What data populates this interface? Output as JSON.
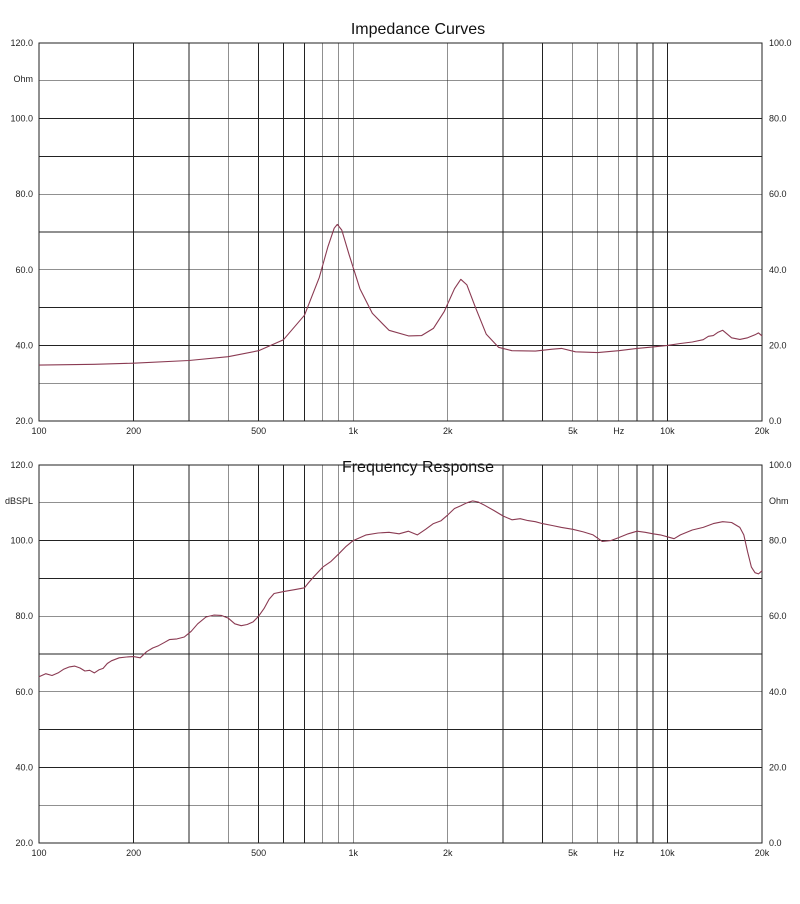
{
  "chart_data": [
    {
      "type": "line",
      "title": "Impedance Curves",
      "x_scale": "log",
      "xlim": [
        100,
        20000
      ],
      "x_ticks": [
        {
          "value": 100,
          "label": "100"
        },
        {
          "value": 200,
          "label": "200"
        },
        {
          "value": 500,
          "label": "500"
        },
        {
          "value": 1000,
          "label": "1k"
        },
        {
          "value": 2000,
          "label": "2k"
        },
        {
          "value": 5000,
          "label": "5k"
        },
        {
          "value": 7000,
          "label": "Hz"
        },
        {
          "value": 10000,
          "label": "10k"
        },
        {
          "value": 20000,
          "label": "20k"
        }
      ],
      "left_axis": {
        "ylim": [
          20,
          120
        ],
        "unit": "Ohm",
        "tick_labels": [
          {
            "value": 120,
            "label": "120.0"
          },
          {
            "value": 100,
            "label": "100.0"
          },
          {
            "value": 80,
            "label": "80.0"
          },
          {
            "value": 60,
            "label": "60.0"
          },
          {
            "value": 40,
            "label": "40.0"
          },
          {
            "value": 20,
            "label": "20.0"
          }
        ]
      },
      "right_axis": {
        "ylim": [
          0,
          100
        ],
        "tick_labels": [
          {
            "value": 100,
            "label": "100.0"
          },
          {
            "value": 80,
            "label": "80.0"
          },
          {
            "value": 60,
            "label": "60.0"
          },
          {
            "value": 40,
            "label": "40.0"
          },
          {
            "value": 20,
            "label": "20.0"
          },
          {
            "value": 0,
            "label": "0.0"
          }
        ]
      },
      "grid": true,
      "series": [
        {
          "color": "#8a3a52",
          "points": [
            [
              100,
              34.8
            ],
            [
              150,
              35.0
            ],
            [
              200,
              35.3
            ],
            [
              300,
              36.0
            ],
            [
              400,
              37.0
            ],
            [
              500,
              38.6
            ],
            [
              600,
              41.5
            ],
            [
              700,
              48.0
            ],
            [
              780,
              58.0
            ],
            [
              830,
              66.0
            ],
            [
              870,
              71.0
            ],
            [
              890,
              72.0
            ],
            [
              920,
              70.5
            ],
            [
              970,
              64.0
            ],
            [
              1050,
              55.0
            ],
            [
              1150,
              48.5
            ],
            [
              1300,
              44.0
            ],
            [
              1500,
              42.5
            ],
            [
              1650,
              42.6
            ],
            [
              1800,
              44.5
            ],
            [
              1950,
              49.0
            ],
            [
              2100,
              55.0
            ],
            [
              2200,
              57.5
            ],
            [
              2300,
              56.0
            ],
            [
              2450,
              50.0
            ],
            [
              2650,
              43.0
            ],
            [
              2900,
              39.5
            ],
            [
              3200,
              38.6
            ],
            [
              3800,
              38.5
            ],
            [
              4300,
              39.0
            ],
            [
              4600,
              39.2
            ],
            [
              5100,
              38.3
            ],
            [
              6000,
              38.1
            ],
            [
              7000,
              38.6
            ],
            [
              8000,
              39.2
            ],
            [
              9000,
              39.6
            ],
            [
              10000,
              40.0
            ],
            [
              11000,
              40.5
            ],
            [
              12000,
              40.9
            ],
            [
              13000,
              41.5
            ],
            [
              13500,
              42.4
            ],
            [
              14000,
              42.6
            ],
            [
              14500,
              43.5
            ],
            [
              15000,
              44.0
            ],
            [
              15500,
              43.0
            ],
            [
              16000,
              42.0
            ],
            [
              17000,
              41.6
            ],
            [
              18000,
              42.0
            ],
            [
              19000,
              42.8
            ],
            [
              19500,
              43.3
            ],
            [
              20000,
              42.5
            ]
          ]
        }
      ]
    },
    {
      "type": "line",
      "title": "Frequency Response",
      "x_scale": "log",
      "xlim": [
        100,
        20000
      ],
      "x_ticks": [
        {
          "value": 100,
          "label": "100"
        },
        {
          "value": 200,
          "label": "200"
        },
        {
          "value": 500,
          "label": "500"
        },
        {
          "value": 1000,
          "label": "1k"
        },
        {
          "value": 2000,
          "label": "2k"
        },
        {
          "value": 5000,
          "label": "5k"
        },
        {
          "value": 7000,
          "label": "Hz"
        },
        {
          "value": 10000,
          "label": "10k"
        },
        {
          "value": 20000,
          "label": "20k"
        }
      ],
      "left_axis": {
        "ylim": [
          20,
          120
        ],
        "unit": "dBSPL",
        "tick_labels": [
          {
            "value": 120,
            "label": "120.0"
          },
          {
            "value": 100,
            "label": "100.0"
          },
          {
            "value": 80,
            "label": "80.0"
          },
          {
            "value": 60,
            "label": "60.0"
          },
          {
            "value": 40,
            "label": "40.0"
          },
          {
            "value": 20,
            "label": "20.0"
          }
        ]
      },
      "right_axis": {
        "ylim": [
          0,
          100
        ],
        "unit": "Ohm",
        "tick_labels": [
          {
            "value": 100,
            "label": "100.0"
          },
          {
            "value": 80,
            "label": "80.0"
          },
          {
            "value": 60,
            "label": "60.0"
          },
          {
            "value": 40,
            "label": "40.0"
          },
          {
            "value": 20,
            "label": "20.0"
          },
          {
            "value": 0,
            "label": "0.0"
          }
        ]
      },
      "grid": true,
      "series": [
        {
          "color": "#8a3a52",
          "points": [
            [
              100,
              64.0
            ],
            [
              105,
              64.8
            ],
            [
              110,
              64.3
            ],
            [
              115,
              65.0
            ],
            [
              120,
              66.0
            ],
            [
              125,
              66.6
            ],
            [
              130,
              66.8
            ],
            [
              135,
              66.3
            ],
            [
              140,
              65.5
            ],
            [
              145,
              65.7
            ],
            [
              150,
              65.0
            ],
            [
              155,
              65.8
            ],
            [
              160,
              66.2
            ],
            [
              165,
              67.5
            ],
            [
              170,
              68.2
            ],
            [
              180,
              69.0
            ],
            [
              190,
              69.2
            ],
            [
              200,
              69.3
            ],
            [
              210,
              69.0
            ],
            [
              220,
              70.6
            ],
            [
              230,
              71.6
            ],
            [
              240,
              72.2
            ],
            [
              250,
              73.0
            ],
            [
              260,
              73.8
            ],
            [
              275,
              74.0
            ],
            [
              290,
              74.5
            ],
            [
              305,
              76.0
            ],
            [
              320,
              78.0
            ],
            [
              340,
              79.8
            ],
            [
              360,
              80.3
            ],
            [
              380,
              80.2
            ],
            [
              400,
              79.5
            ],
            [
              420,
              78.0
            ],
            [
              440,
              77.5
            ],
            [
              460,
              77.8
            ],
            [
              480,
              78.5
            ],
            [
              500,
              80.0
            ],
            [
              520,
              82.0
            ],
            [
              540,
              84.5
            ],
            [
              560,
              86.0
            ],
            [
              600,
              86.5
            ],
            [
              650,
              87.0
            ],
            [
              700,
              87.5
            ],
            [
              720,
              88.8
            ],
            [
              750,
              90.5
            ],
            [
              800,
              93.0
            ],
            [
              850,
              94.5
            ],
            [
              900,
              96.5
            ],
            [
              950,
              98.5
            ],
            [
              1000,
              100.0
            ],
            [
              1100,
              101.5
            ],
            [
              1200,
              102.0
            ],
            [
              1300,
              102.2
            ],
            [
              1400,
              101.8
            ],
            [
              1500,
              102.5
            ],
            [
              1600,
              101.5
            ],
            [
              1700,
              103.0
            ],
            [
              1800,
              104.5
            ],
            [
              1900,
              105.2
            ],
            [
              2000,
              106.8
            ],
            [
              2100,
              108.5
            ],
            [
              2200,
              109.2
            ],
            [
              2300,
              110.0
            ],
            [
              2400,
              110.5
            ],
            [
              2500,
              110.2
            ],
            [
              2600,
              109.5
            ],
            [
              2800,
              108.0
            ],
            [
              3000,
              106.5
            ],
            [
              3200,
              105.5
            ],
            [
              3400,
              105.8
            ],
            [
              3600,
              105.3
            ],
            [
              3800,
              105.0
            ],
            [
              4000,
              104.5
            ],
            [
              4300,
              104.0
            ],
            [
              4600,
              103.5
            ],
            [
              5000,
              103.0
            ],
            [
              5400,
              102.3
            ],
            [
              5800,
              101.5
            ],
            [
              6200,
              99.8
            ],
            [
              6600,
              100.0
            ],
            [
              7000,
              100.8
            ],
            [
              7500,
              101.8
            ],
            [
              8000,
              102.5
            ],
            [
              8500,
              102.2
            ],
            [
              9000,
              101.8
            ],
            [
              9500,
              101.5
            ],
            [
              10000,
              101.0
            ],
            [
              10500,
              100.5
            ],
            [
              11000,
              101.5
            ],
            [
              12000,
              102.8
            ],
            [
              13000,
              103.5
            ],
            [
              14000,
              104.5
            ],
            [
              15000,
              105.0
            ],
            [
              16000,
              104.8
            ],
            [
              17000,
              103.5
            ],
            [
              17500,
              101.5
            ],
            [
              18000,
              97.0
            ],
            [
              18500,
              93.0
            ],
            [
              19000,
              91.5
            ],
            [
              19500,
              91.2
            ],
            [
              20000,
              92.0
            ]
          ]
        }
      ]
    }
  ]
}
